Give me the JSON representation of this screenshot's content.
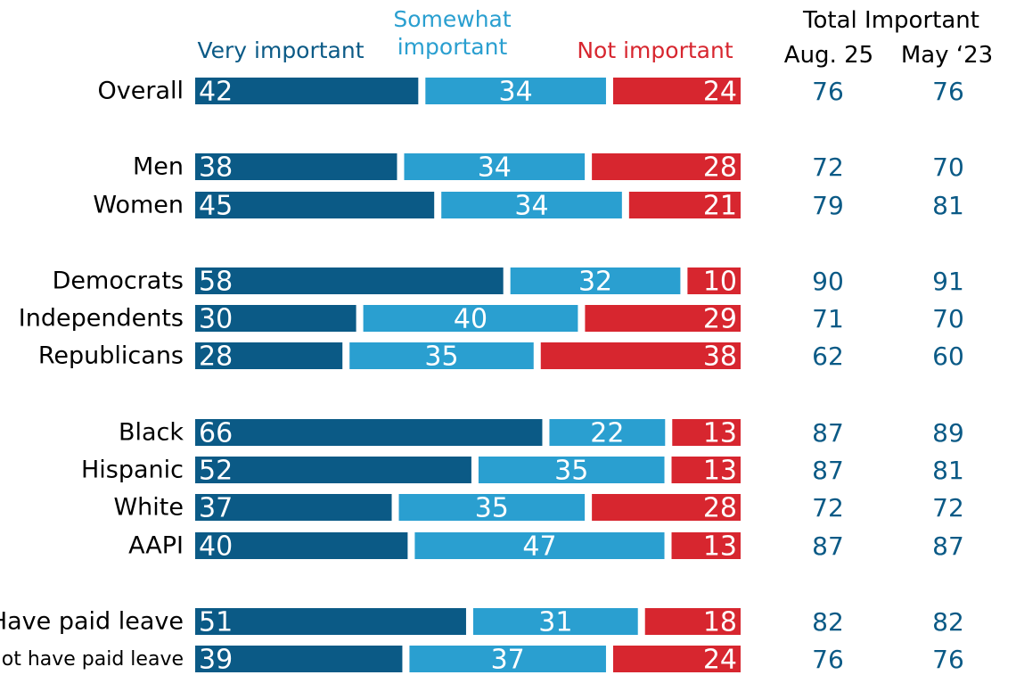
{
  "chart_data": {
    "type": "bar",
    "stacked": true,
    "orientation": "horizontal",
    "series": [
      {
        "name": "Very important",
        "color": "#0b5a86"
      },
      {
        "name": "Somewhat important",
        "color": "#2a9fd0"
      },
      {
        "name": "Not important",
        "color": "#d7262f"
      }
    ],
    "legend_labels": {
      "very": "Very important",
      "somewhat_line1": "Somewhat",
      "somewhat_line2": "important",
      "not": "Not important"
    },
    "total_header": {
      "title": "Total Important",
      "col1": "Aug. 25",
      "col2": "May ‘23"
    },
    "rows": [
      {
        "label": "Overall",
        "values": [
          42,
          34,
          24
        ],
        "total_aug25": 76,
        "total_may23": 76
      },
      {
        "label": "Men",
        "values": [
          38,
          34,
          28
        ],
        "total_aug25": 72,
        "total_may23": 70
      },
      {
        "label": "Women",
        "values": [
          45,
          34,
          21
        ],
        "total_aug25": 79,
        "total_may23": 81
      },
      {
        "label": "Democrats",
        "values": [
          58,
          32,
          10
        ],
        "total_aug25": 90,
        "total_may23": 91
      },
      {
        "label": "Independents",
        "values": [
          30,
          40,
          29
        ],
        "total_aug25": 71,
        "total_may23": 70
      },
      {
        "label": "Republicans",
        "values": [
          28,
          35,
          38
        ],
        "total_aug25": 62,
        "total_may23": 60
      },
      {
        "label": "Black",
        "values": [
          66,
          22,
          13
        ],
        "total_aug25": 87,
        "total_may23": 89
      },
      {
        "label": "Hispanic",
        "values": [
          52,
          35,
          13
        ],
        "total_aug25": 87,
        "total_may23": 81
      },
      {
        "label": "White",
        "values": [
          37,
          35,
          28
        ],
        "total_aug25": 72,
        "total_may23": 72
      },
      {
        "label": "AAPI",
        "values": [
          40,
          47,
          13
        ],
        "total_aug25": 87,
        "total_may23": 87
      },
      {
        "label": "Have paid leave",
        "values": [
          51,
          31,
          18
        ],
        "total_aug25": 82,
        "total_may23": 82
      },
      {
        "label": "Do not have paid leave",
        "values": [
          39,
          37,
          24
        ],
        "total_aug25": 76,
        "total_may23": 76
      }
    ]
  }
}
